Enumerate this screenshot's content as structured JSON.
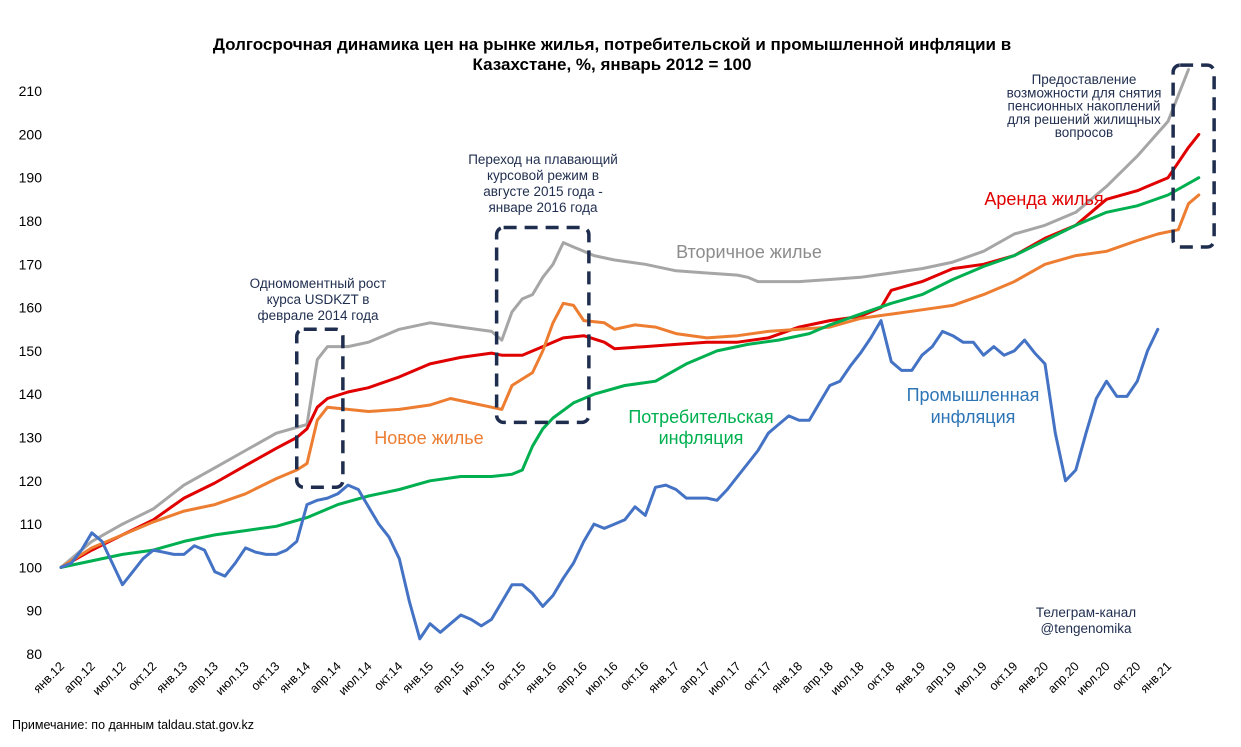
{
  "chart_data": {
    "type": "line",
    "title_line1": "Долгосрочная динамика цен на рынке жилья, потребительской и промышленной инфляции в",
    "title_line2": "Казахстане, %, январь 2012 = 100",
    "ylim": [
      80,
      215
    ],
    "yticks": [
      80,
      90,
      100,
      110,
      120,
      130,
      140,
      150,
      160,
      170,
      180,
      190,
      200,
      210
    ],
    "grid": false,
    "x_tick_labels": [
      "янв.12",
      "апр.12",
      "июл.12",
      "окт.12",
      "янв.13",
      "апр.13",
      "июл.13",
      "окт.13",
      "янв.14",
      "апр.14",
      "июл.14",
      "окт.14",
      "янв.15",
      "апр.15",
      "июл.15",
      "окт.15",
      "янв.16",
      "апр.16",
      "июл.16",
      "окт.16",
      "янв.17",
      "апр.17",
      "июл.17",
      "окт.17",
      "янв.18",
      "апр.18",
      "июл.18",
      "окт.18",
      "янв.19",
      "апр.19",
      "июл.19",
      "окт.19",
      "янв.20",
      "апр.20",
      "июл.20",
      "окт.20",
      "янв.21"
    ],
    "series": [
      {
        "name": "Вторичное жилье",
        "color": "#a6a6a6",
        "label_color": "#8c8c8c",
        "points": [
          [
            0,
            100
          ],
          [
            3,
            106
          ],
          [
            6,
            110
          ],
          [
            9,
            113.5
          ],
          [
            12,
            119
          ],
          [
            15,
            123
          ],
          [
            18,
            127
          ],
          [
            21,
            131
          ],
          [
            24,
            133
          ],
          [
            25,
            148
          ],
          [
            26,
            151
          ],
          [
            28,
            151
          ],
          [
            30,
            152
          ],
          [
            33,
            155
          ],
          [
            36,
            156.5
          ],
          [
            39,
            155.5
          ],
          [
            42,
            154.5
          ],
          [
            43,
            152.5
          ],
          [
            44,
            159
          ],
          [
            45,
            162
          ],
          [
            46,
            163
          ],
          [
            47,
            167
          ],
          [
            48,
            170
          ],
          [
            49,
            175
          ],
          [
            50,
            174
          ],
          [
            51,
            173
          ],
          [
            52,
            172
          ],
          [
            54,
            171
          ],
          [
            57,
            170
          ],
          [
            60,
            168.5
          ],
          [
            63,
            168
          ],
          [
            66,
            167.5
          ],
          [
            67,
            167
          ],
          [
            68,
            166
          ],
          [
            69,
            166
          ],
          [
            72,
            166
          ],
          [
            75,
            166.5
          ],
          [
            78,
            167
          ],
          [
            81,
            168
          ],
          [
            84,
            169
          ],
          [
            87,
            170.5
          ],
          [
            90,
            173
          ],
          [
            93,
            177
          ],
          [
            96,
            179
          ],
          [
            99,
            182
          ],
          [
            102,
            188
          ],
          [
            105,
            195
          ],
          [
            108,
            203
          ],
          [
            110,
            215
          ]
        ]
      },
      {
        "name": "Аренда жилья",
        "color": "#e00000",
        "label_color": "#e00000",
        "points": [
          [
            0,
            100
          ],
          [
            3,
            104
          ],
          [
            6,
            107.5
          ],
          [
            9,
            111
          ],
          [
            12,
            116
          ],
          [
            15,
            119.5
          ],
          [
            18,
            123.5
          ],
          [
            21,
            127.5
          ],
          [
            23,
            130
          ],
          [
            24,
            132
          ],
          [
            25,
            137
          ],
          [
            26,
            139
          ],
          [
            28,
            140.5
          ],
          [
            30,
            141.5
          ],
          [
            33,
            144
          ],
          [
            36,
            147
          ],
          [
            39,
            148.5
          ],
          [
            42,
            149.5
          ],
          [
            43,
            149
          ],
          [
            45,
            149
          ],
          [
            47,
            151
          ],
          [
            49,
            153
          ],
          [
            51,
            153.5
          ],
          [
            53,
            152
          ],
          [
            54,
            150.5
          ],
          [
            57,
            151
          ],
          [
            60,
            151.5
          ],
          [
            63,
            152
          ],
          [
            66,
            152
          ],
          [
            69,
            153
          ],
          [
            72,
            155.5
          ],
          [
            75,
            157
          ],
          [
            78,
            158
          ],
          [
            80,
            160
          ],
          [
            81,
            164
          ],
          [
            84,
            166
          ],
          [
            87,
            169
          ],
          [
            90,
            170
          ],
          [
            93,
            172
          ],
          [
            96,
            176
          ],
          [
            99,
            179
          ],
          [
            102,
            185
          ],
          [
            105,
            187
          ],
          [
            108,
            190
          ],
          [
            110,
            197
          ],
          [
            111,
            200
          ]
        ]
      },
      {
        "name": "Новое жилье",
        "color": "#ed7d31",
        "label_color": "#ed7d31",
        "points": [
          [
            0,
            100
          ],
          [
            3,
            104.5
          ],
          [
            6,
            107.5
          ],
          [
            9,
            110.5
          ],
          [
            12,
            113
          ],
          [
            15,
            114.5
          ],
          [
            18,
            117
          ],
          [
            21,
            120.5
          ],
          [
            23,
            122.5
          ],
          [
            24,
            124
          ],
          [
            25,
            134
          ],
          [
            26,
            137
          ],
          [
            28,
            136.5
          ],
          [
            30,
            136
          ],
          [
            33,
            136.5
          ],
          [
            36,
            137.5
          ],
          [
            38,
            139
          ],
          [
            40,
            138
          ],
          [
            42,
            137
          ],
          [
            43,
            136.5
          ],
          [
            44,
            142
          ],
          [
            46,
            145
          ],
          [
            47,
            150
          ],
          [
            48,
            156.5
          ],
          [
            49,
            161
          ],
          [
            50,
            160.5
          ],
          [
            51,
            157
          ],
          [
            53,
            156.5
          ],
          [
            54,
            155
          ],
          [
            56,
            156
          ],
          [
            58,
            155.5
          ],
          [
            60,
            154
          ],
          [
            63,
            153
          ],
          [
            66,
            153.5
          ],
          [
            69,
            154.5
          ],
          [
            72,
            155
          ],
          [
            75,
            155.5
          ],
          [
            78,
            157.5
          ],
          [
            81,
            158.5
          ],
          [
            84,
            159.5
          ],
          [
            87,
            160.5
          ],
          [
            90,
            163
          ],
          [
            93,
            166
          ],
          [
            96,
            170
          ],
          [
            99,
            172
          ],
          [
            102,
            173
          ],
          [
            105,
            175.5
          ],
          [
            107,
            177
          ],
          [
            109,
            178
          ],
          [
            110,
            184
          ],
          [
            111,
            186
          ]
        ]
      },
      {
        "name": "Потребительская инфляция",
        "color": "#00b050",
        "label_color": "#00b050",
        "points": [
          [
            0,
            100
          ],
          [
            3,
            101.5
          ],
          [
            6,
            103
          ],
          [
            9,
            104
          ],
          [
            12,
            106
          ],
          [
            15,
            107.5
          ],
          [
            18,
            108.5
          ],
          [
            21,
            109.5
          ],
          [
            24,
            111.5
          ],
          [
            27,
            114.5
          ],
          [
            30,
            116.5
          ],
          [
            33,
            118
          ],
          [
            36,
            120
          ],
          [
            39,
            121
          ],
          [
            42,
            121
          ],
          [
            44,
            121.5
          ],
          [
            45,
            122.5
          ],
          [
            46,
            128
          ],
          [
            47,
            132
          ],
          [
            48,
            134.5
          ],
          [
            50,
            138
          ],
          [
            52,
            140
          ],
          [
            55,
            142
          ],
          [
            58,
            143
          ],
          [
            61,
            147
          ],
          [
            64,
            150
          ],
          [
            67,
            151.5
          ],
          [
            70,
            152.5
          ],
          [
            73,
            154
          ],
          [
            75,
            156
          ],
          [
            78,
            158.5
          ],
          [
            81,
            161
          ],
          [
            84,
            163
          ],
          [
            87,
            166.5
          ],
          [
            90,
            169.5
          ],
          [
            93,
            172
          ],
          [
            96,
            175.5
          ],
          [
            99,
            179
          ],
          [
            102,
            182
          ],
          [
            105,
            183.5
          ],
          [
            108,
            186
          ],
          [
            111,
            190
          ]
        ]
      },
      {
        "name": "Промышленная инфляция",
        "color": "#4472c4",
        "label_color": "#2e75b6",
        "points": [
          [
            0,
            100
          ],
          [
            1,
            101
          ],
          [
            2,
            104
          ],
          [
            3,
            108
          ],
          [
            4,
            106
          ],
          [
            5,
            101
          ],
          [
            6,
            96
          ],
          [
            7,
            99
          ],
          [
            8,
            102
          ],
          [
            9,
            104
          ],
          [
            10,
            103.5
          ],
          [
            11,
            103
          ],
          [
            12,
            103
          ],
          [
            13,
            105
          ],
          [
            14,
            104
          ],
          [
            15,
            99
          ],
          [
            16,
            98
          ],
          [
            17,
            101
          ],
          [
            18,
            104.5
          ],
          [
            19,
            103.5
          ],
          [
            20,
            103
          ],
          [
            21,
            103
          ],
          [
            22,
            104
          ],
          [
            23,
            106
          ],
          [
            24,
            114.5
          ],
          [
            25,
            115.5
          ],
          [
            26,
            116
          ],
          [
            27,
            117
          ],
          [
            28,
            119
          ],
          [
            29,
            118
          ],
          [
            30,
            114
          ],
          [
            31,
            110
          ],
          [
            32,
            107
          ],
          [
            33,
            102
          ],
          [
            34,
            92
          ],
          [
            35,
            83.5
          ],
          [
            36,
            87
          ],
          [
            37,
            85
          ],
          [
            38,
            87
          ],
          [
            39,
            89
          ],
          [
            40,
            88
          ],
          [
            41,
            86.5
          ],
          [
            42,
            88
          ],
          [
            43,
            92
          ],
          [
            44,
            96
          ],
          [
            45,
            96
          ],
          [
            46,
            94
          ],
          [
            47,
            91
          ],
          [
            48,
            93.5
          ],
          [
            49,
            97.5
          ],
          [
            50,
            101
          ],
          [
            51,
            106
          ],
          [
            52,
            110
          ],
          [
            53,
            109
          ],
          [
            54,
            110
          ],
          [
            55,
            111
          ],
          [
            56,
            114
          ],
          [
            57,
            112
          ],
          [
            58,
            118.5
          ],
          [
            59,
            119
          ],
          [
            60,
            118
          ],
          [
            61,
            116
          ],
          [
            62,
            116
          ],
          [
            63,
            116
          ],
          [
            64,
            115.5
          ],
          [
            65,
            118
          ],
          [
            66,
            121
          ],
          [
            67,
            124
          ],
          [
            68,
            127
          ],
          [
            69,
            131
          ],
          [
            70,
            133
          ],
          [
            71,
            135
          ],
          [
            72,
            134
          ],
          [
            73,
            134
          ],
          [
            74,
            138
          ],
          [
            75,
            142
          ],
          [
            76,
            143
          ],
          [
            77,
            146.5
          ],
          [
            78,
            149.5
          ],
          [
            79,
            153
          ],
          [
            80,
            157
          ],
          [
            81,
            147.5
          ],
          [
            82,
            145.5
          ],
          [
            83,
            145.5
          ],
          [
            84,
            149
          ],
          [
            85,
            151
          ],
          [
            86,
            154.5
          ],
          [
            87,
            153.5
          ],
          [
            88,
            152
          ],
          [
            89,
            152
          ],
          [
            90,
            149
          ],
          [
            91,
            151
          ],
          [
            92,
            149
          ],
          [
            93,
            150
          ],
          [
            94,
            152.5
          ],
          [
            95,
            149.5
          ],
          [
            96,
            147
          ],
          [
            97,
            131
          ],
          [
            98,
            120
          ],
          [
            99,
            122.5
          ],
          [
            100,
            131
          ],
          [
            101,
            139
          ],
          [
            102,
            143
          ],
          [
            103,
            139.5
          ],
          [
            104,
            139.5
          ],
          [
            105,
            143
          ],
          [
            106,
            150
          ],
          [
            107,
            155
          ]
        ]
      }
    ],
    "annotations": {
      "feb2014": [
        "Одномоментный рост",
        "курса USDKZT в",
        "феврале 2014 года"
      ],
      "float2015": [
        "Переход на плавающий",
        "курсовой режим в",
        "августе 2015 года -",
        "январе 2016 года"
      ],
      "pension2021": [
        "Предоставление",
        "возможности для снятия",
        "пенсионных накоплений",
        "для решений жилищных",
        "вопросов"
      ]
    },
    "series_labels": {
      "secondary": "Вторичное жилье",
      "rent": "Аренда жилья",
      "new": "Новое жилье",
      "cpi_line1": "Потребительская",
      "cpi_line2": "инфляция",
      "ppi_line1": "Промышленная",
      "ppi_line2": "инфляция"
    },
    "telegram": [
      "Телеграм-канал",
      "@tengenomika"
    ],
    "box_color": "#1f2d4e"
  },
  "note": "Примечание: по данным taldau.stat.gov.kz"
}
